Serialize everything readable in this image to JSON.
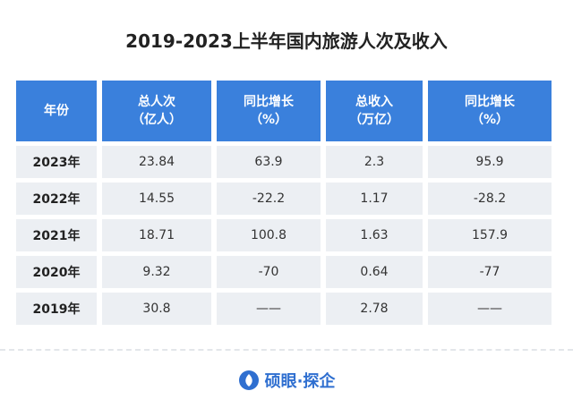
{
  "header": {
    "title": "2019-2023上半年国内旅游人次及收入"
  },
  "table": {
    "columns": [
      [
        "年份"
      ],
      [
        "总人次",
        "（亿人）"
      ],
      [
        "同比增长",
        "（%）"
      ],
      [
        "总收入",
        "（万亿）"
      ],
      [
        "同比增长",
        "（%）"
      ]
    ],
    "rows": [
      [
        "2023年",
        "23.84",
        "63.9",
        "2.3",
        "95.9"
      ],
      [
        "2022年",
        "14.55",
        "-22.2",
        "1.17",
        "-28.2"
      ],
      [
        "2021年",
        "18.71",
        "100.8",
        "1.63",
        "157.9"
      ],
      [
        "2020年",
        "9.32",
        "-70",
        "0.64",
        "-77"
      ],
      [
        "2019年",
        "30.8",
        "——",
        "2.78",
        "——"
      ]
    ]
  },
  "footer": {
    "brand": "硕眼·探企"
  }
}
